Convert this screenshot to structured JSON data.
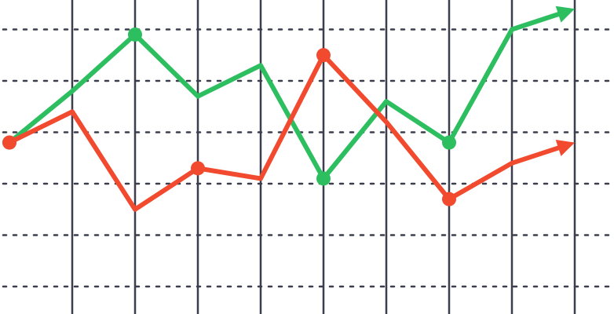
{
  "chart_data": {
    "type": "line",
    "title": "",
    "xlabel": "",
    "ylabel": "",
    "grid": true,
    "x": [
      0,
      1,
      2,
      3,
      4,
      5,
      6,
      7,
      8,
      9
    ],
    "xlim": [
      0,
      9.5
    ],
    "ylim": [
      0,
      6
    ],
    "series": [
      {
        "color": "#2dbe60",
        "values": [
          2.8,
          3.8,
          4.9,
          3.7,
          4.3,
          2.1,
          3.6,
          2.8,
          5.0,
          5.4
        ],
        "markers": [
          0,
          2,
          5,
          7
        ],
        "arrow_end": true
      },
      {
        "color": "#f24a2e",
        "values": [
          2.8,
          3.4,
          1.5,
          2.3,
          2.1,
          4.5,
          3.2,
          1.7,
          2.4,
          2.8
        ],
        "markers": [
          0,
          3,
          5,
          7
        ],
        "arrow_end": true
      }
    ]
  }
}
